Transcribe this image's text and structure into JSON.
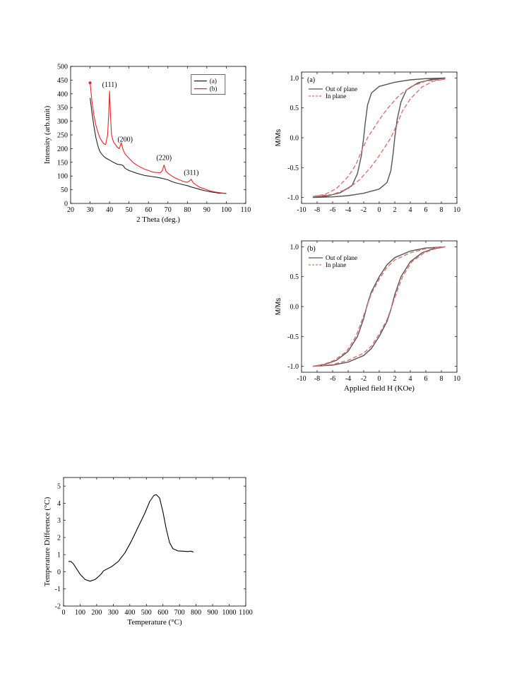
{
  "chart_data": [
    {
      "id": "xrd",
      "type": "line",
      "xlabel": "2 Theta (deg.)",
      "ylabel": "Intensity (arb.unit)",
      "xlim": [
        20,
        110
      ],
      "ylim": [
        0,
        500
      ],
      "xticks": [
        "20",
        "30",
        "40",
        "50",
        "60",
        "70",
        "80",
        "90",
        "100",
        "110"
      ],
      "yticks": [
        "0",
        "50",
        "100",
        "150",
        "200",
        "250",
        "300",
        "350",
        "400",
        "450",
        "500"
      ],
      "legend_position": "top-right",
      "series": [
        {
          "name": "(a)",
          "color": "#222222",
          "points": [
            [
              30,
              385
            ],
            [
              31,
              330
            ],
            [
              32,
              280
            ],
            [
              33,
              240
            ],
            [
              34,
              210
            ],
            [
              35,
              190
            ],
            [
              36,
              180
            ],
            [
              37,
              172
            ],
            [
              38,
              166
            ],
            [
              39,
              162
            ],
            [
              40,
              158
            ],
            [
              42,
              150
            ],
            [
              44,
              143
            ],
            [
              45,
              142
            ],
            [
              46,
              141
            ],
            [
              47,
              138
            ],
            [
              48,
              128
            ],
            [
              50,
              120
            ],
            [
              52,
              115
            ],
            [
              54,
              110
            ],
            [
              56,
              106
            ],
            [
              58,
              102
            ],
            [
              60,
              100
            ],
            [
              62,
              98
            ],
            [
              64,
              96
            ],
            [
              66,
              93
            ],
            [
              68,
              90
            ],
            [
              70,
              86
            ],
            [
              72,
              80
            ],
            [
              74,
              75
            ],
            [
              76,
              72
            ],
            [
              78,
              68
            ],
            [
              80,
              65
            ],
            [
              82,
              60
            ],
            [
              84,
              56
            ],
            [
              86,
              52
            ],
            [
              88,
              48
            ],
            [
              90,
              45
            ],
            [
              92,
              42
            ],
            [
              94,
              40
            ],
            [
              96,
              38
            ],
            [
              98,
              37
            ],
            [
              100,
              36
            ]
          ]
        },
        {
          "name": "(b)",
          "color": "#e8222a",
          "points": [
            [
              30,
              440
            ],
            [
              31,
              370
            ],
            [
              32,
              320
            ],
            [
              33,
              285
            ],
            [
              34,
              260
            ],
            [
              35,
              240
            ],
            [
              36,
              228
            ],
            [
              37,
              218
            ],
            [
              38,
              215
            ],
            [
              39,
              250
            ],
            [
              39.6,
              330
            ],
            [
              40,
              410
            ],
            [
              40.5,
              320
            ],
            [
              41,
              250
            ],
            [
              42,
              225
            ],
            [
              43,
              215
            ],
            [
              44,
              205
            ],
            [
              45,
              200
            ],
            [
              46,
              222
            ],
            [
              47,
              195
            ],
            [
              48,
              180
            ],
            [
              50,
              165
            ],
            [
              52,
              150
            ],
            [
              54,
              140
            ],
            [
              56,
              132
            ],
            [
              58,
              125
            ],
            [
              60,
              120
            ],
            [
              62,
              115
            ],
            [
              64,
              113
            ],
            [
              66,
              112
            ],
            [
              67,
              118
            ],
            [
              68,
              140
            ],
            [
              69,
              118
            ],
            [
              70,
              110
            ],
            [
              72,
              100
            ],
            [
              74,
              92
            ],
            [
              76,
              86
            ],
            [
              78,
              80
            ],
            [
              80,
              77
            ],
            [
              81,
              82
            ],
            [
              82,
              88
            ],
            [
              83,
              75
            ],
            [
              84,
              70
            ],
            [
              86,
              60
            ],
            [
              88,
              55
            ],
            [
              90,
              50
            ],
            [
              92,
              45
            ],
            [
              94,
              42
            ],
            [
              96,
              40
            ],
            [
              98,
              38
            ],
            [
              100,
              37
            ]
          ]
        }
      ],
      "annotations": [
        {
          "text": "(111)",
          "x": 40,
          "y": 425
        },
        {
          "text": "(200)",
          "x": 48,
          "y": 225
        },
        {
          "text": "(220)",
          "x": 68,
          "y": 158
        },
        {
          "text": "(311)",
          "x": 82,
          "y": 105
        }
      ]
    },
    {
      "id": "mh_a",
      "type": "line",
      "panel_label": "(a)",
      "xlabel": "",
      "ylabel": "M/Ms",
      "xlim": [
        -10,
        10
      ],
      "ylim": [
        -1.1,
        1.1
      ],
      "xticks": [
        "-10",
        "-8",
        "-6",
        "-4",
        "-2",
        "0",
        "2",
        "4",
        "6",
        "8",
        "10"
      ],
      "yticks": [
        "-1.0",
        "-0.5",
        "0.0",
        "0.5",
        "1.0"
      ],
      "legend_position": "top-left",
      "series": [
        {
          "name": "Out of plane",
          "color": "#555555",
          "dash": "",
          "points": [
            [
              8.5,
              1.0
            ],
            [
              6,
              0.99
            ],
            [
              4,
              0.97
            ],
            [
              2,
              0.93
            ],
            [
              0,
              0.86
            ],
            [
              -1,
              0.75
            ],
            [
              -1.5,
              0.55
            ],
            [
              -1.8,
              0.25
            ],
            [
              -2,
              0.0
            ],
            [
              -2.3,
              -0.3
            ],
            [
              -2.8,
              -0.6
            ],
            [
              -3.5,
              -0.8
            ],
            [
              -5,
              -0.92
            ],
            [
              -6.5,
              -0.97
            ],
            [
              -8.5,
              -1.0
            ],
            [
              -6,
              -0.99
            ],
            [
              -4,
              -0.97
            ],
            [
              -2,
              -0.93
            ],
            [
              0,
              -0.86
            ],
            [
              1,
              -0.75
            ],
            [
              1.5,
              -0.55
            ],
            [
              1.8,
              -0.25
            ],
            [
              2,
              0.0
            ],
            [
              2.3,
              0.3
            ],
            [
              2.8,
              0.6
            ],
            [
              3.5,
              0.8
            ],
            [
              5,
              0.92
            ],
            [
              6.5,
              0.97
            ],
            [
              8.5,
              1.0
            ]
          ]
        },
        {
          "name": "In plane",
          "color": "#e07070",
          "dash": "6,3",
          "points": [
            [
              8.5,
              0.98
            ],
            [
              6,
              0.95
            ],
            [
              4,
              0.85
            ],
            [
              2.5,
              0.7
            ],
            [
              1,
              0.48
            ],
            [
              0,
              0.3
            ],
            [
              -1,
              0.1
            ],
            [
              -1.5,
              0.0
            ],
            [
              -2.2,
              -0.2
            ],
            [
              -3,
              -0.45
            ],
            [
              -4,
              -0.65
            ],
            [
              -5.5,
              -0.85
            ],
            [
              -7,
              -0.95
            ],
            [
              -8.5,
              -0.98
            ],
            [
              -6,
              -0.95
            ],
            [
              -4,
              -0.85
            ],
            [
              -2.5,
              -0.7
            ],
            [
              -1,
              -0.48
            ],
            [
              0,
              -0.3
            ],
            [
              1,
              -0.1
            ],
            [
              1.5,
              0.0
            ],
            [
              2.2,
              0.2
            ],
            [
              3,
              0.45
            ],
            [
              4,
              0.65
            ],
            [
              5.5,
              0.85
            ],
            [
              7,
              0.95
            ],
            [
              8.5,
              0.98
            ]
          ]
        }
      ]
    },
    {
      "id": "mh_b",
      "type": "line",
      "panel_label": "(b)",
      "xlabel": "Applied field H (KOe)",
      "ylabel": "M/Ms",
      "xlim": [
        -10,
        10
      ],
      "ylim": [
        -1.1,
        1.1
      ],
      "xticks": [
        "-10",
        "-8",
        "-6",
        "-4",
        "-2",
        "0",
        "2",
        "4",
        "6",
        "8",
        "10"
      ],
      "yticks": [
        "-1.0",
        "-0.5",
        "0.0",
        "0.5",
        "1.0"
      ],
      "legend_position": "top-left",
      "series": [
        {
          "name": "Out of plane",
          "color": "#555555",
          "dash": "",
          "points": [
            [
              8.5,
              1.0
            ],
            [
              6,
              0.98
            ],
            [
              4,
              0.93
            ],
            [
              2,
              0.82
            ],
            [
              1,
              0.7
            ],
            [
              0,
              0.5
            ],
            [
              -1,
              0.25
            ],
            [
              -1.5,
              0.05
            ],
            [
              -2,
              -0.2
            ],
            [
              -2.8,
              -0.5
            ],
            [
              -4,
              -0.75
            ],
            [
              -5.5,
              -0.9
            ],
            [
              -7,
              -0.97
            ],
            [
              -8.5,
              -1.0
            ],
            [
              -6,
              -0.98
            ],
            [
              -4,
              -0.93
            ],
            [
              -2,
              -0.82
            ],
            [
              -1,
              -0.7
            ],
            [
              0,
              -0.5
            ],
            [
              1,
              -0.25
            ],
            [
              1.5,
              -0.05
            ],
            [
              2,
              0.2
            ],
            [
              2.8,
              0.5
            ],
            [
              4,
              0.75
            ],
            [
              5.5,
              0.9
            ],
            [
              7,
              0.97
            ],
            [
              8.5,
              1.0
            ]
          ]
        },
        {
          "name": "In plane",
          "color": "#e07070",
          "dash": "6,3",
          "points": [
            [
              8.5,
              1.0
            ],
            [
              6,
              0.97
            ],
            [
              4,
              0.9
            ],
            [
              2,
              0.78
            ],
            [
              1,
              0.66
            ],
            [
              0,
              0.46
            ],
            [
              -1,
              0.22
            ],
            [
              -1.6,
              0.0
            ],
            [
              -2.2,
              -0.22
            ],
            [
              -3,
              -0.5
            ],
            [
              -4.2,
              -0.75
            ],
            [
              -5.8,
              -0.9
            ],
            [
              -7,
              -0.96
            ],
            [
              -8.5,
              -1.0
            ],
            [
              -6,
              -0.97
            ],
            [
              -4,
              -0.9
            ],
            [
              -2,
              -0.78
            ],
            [
              -1,
              -0.66
            ],
            [
              0,
              -0.46
            ],
            [
              1,
              -0.22
            ],
            [
              1.6,
              0.0
            ],
            [
              2.2,
              0.22
            ],
            [
              3,
              0.5
            ],
            [
              4.2,
              0.75
            ],
            [
              5.8,
              0.9
            ],
            [
              7,
              0.96
            ],
            [
              8.5,
              1.0
            ]
          ]
        }
      ]
    },
    {
      "id": "dta",
      "type": "line",
      "xlabel": "Temperature (°C)",
      "ylabel": "Temperature Difference (°C)",
      "xlim": [
        0,
        1100
      ],
      "ylim": [
        -2,
        5.5
      ],
      "xticks": [
        "0",
        "100",
        "200",
        "300",
        "400",
        "500",
        "600",
        "700",
        "800",
        "900",
        "1000",
        "1100"
      ],
      "yticks": [
        "-2",
        "-1",
        "0",
        "1",
        "2",
        "3",
        "4",
        "5"
      ],
      "series": [
        {
          "name": "",
          "color": "#000000",
          "points": [
            [
              30,
              0.6
            ],
            [
              45,
              0.6
            ],
            [
              60,
              0.45
            ],
            [
              80,
              0.15
            ],
            [
              100,
              -0.15
            ],
            [
              130,
              -0.45
            ],
            [
              160,
              -0.55
            ],
            [
              190,
              -0.45
            ],
            [
              215,
              -0.25
            ],
            [
              230,
              -0.1
            ],
            [
              240,
              0.05
            ],
            [
              260,
              0.15
            ],
            [
              290,
              0.3
            ],
            [
              330,
              0.6
            ],
            [
              370,
              1.1
            ],
            [
              410,
              1.8
            ],
            [
              450,
              2.6
            ],
            [
              490,
              3.4
            ],
            [
              520,
              4.1
            ],
            [
              545,
              4.45
            ],
            [
              560,
              4.5
            ],
            [
              580,
              4.3
            ],
            [
              600,
              3.5
            ],
            [
              620,
              2.5
            ],
            [
              640,
              1.7
            ],
            [
              660,
              1.35
            ],
            [
              690,
              1.22
            ],
            [
              720,
              1.2
            ],
            [
              750,
              1.18
            ],
            [
              770,
              1.2
            ],
            [
              785,
              1.15
            ]
          ]
        }
      ]
    }
  ]
}
